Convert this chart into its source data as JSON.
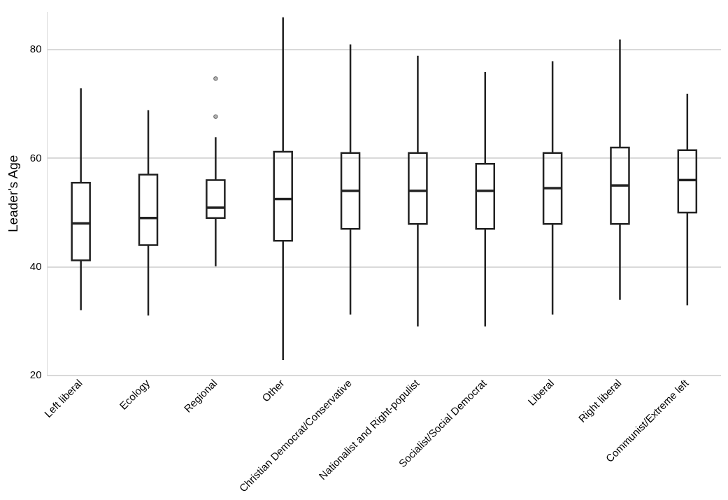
{
  "chart_data": {
    "type": "box",
    "ylabel": "Leader's Age",
    "categories": [
      "Left liberal",
      "Ecology",
      "Regional",
      "Other",
      "Christian Democrat/Conservative",
      "Nationalist and Right-populist",
      "Socialist/Social Democrat",
      "Liberal",
      "Right liberal",
      "Communist/Extreme left"
    ],
    "series": [
      {
        "color": "#222222",
        "boxes": [
          {
            "low": 32.0,
            "q1": 41.2,
            "median": 48.0,
            "q3": 55.5,
            "high": 72.9
          },
          {
            "low": 31.0,
            "q1": 44.0,
            "median": 49.0,
            "q3": 57.0,
            "high": 68.9
          },
          {
            "low": 40.1,
            "q1": 49.0,
            "median": 50.9,
            "q3": 56.0,
            "high": 63.9,
            "outliers": [
              74.7,
              67.7
            ]
          },
          {
            "low": 22.8,
            "q1": 44.8,
            "median": 52.5,
            "q3": 61.2,
            "high": 86.0
          },
          {
            "low": 31.2,
            "q1": 47.0,
            "median": 54.0,
            "q3": 61.0,
            "high": 81.0
          },
          {
            "low": 29.0,
            "q1": 47.9,
            "median": 54.0,
            "q3": 61.0,
            "high": 78.9
          },
          {
            "low": 29.0,
            "q1": 47.0,
            "median": 54.0,
            "q3": 59.0,
            "high": 75.9
          },
          {
            "low": 31.2,
            "q1": 47.9,
            "median": 54.5,
            "q3": 61.0,
            "high": 77.9
          },
          {
            "low": 33.9,
            "q1": 47.9,
            "median": 55.0,
            "q3": 62.0,
            "high": 81.9
          },
          {
            "low": 32.9,
            "q1": 50.0,
            "median": 56.0,
            "q3": 61.5,
            "high": 71.9
          }
        ]
      }
    ],
    "ylim": [
      20,
      87
    ],
    "yticks": [
      20,
      40,
      60,
      80
    ],
    "grid": "y",
    "legend": false
  }
}
